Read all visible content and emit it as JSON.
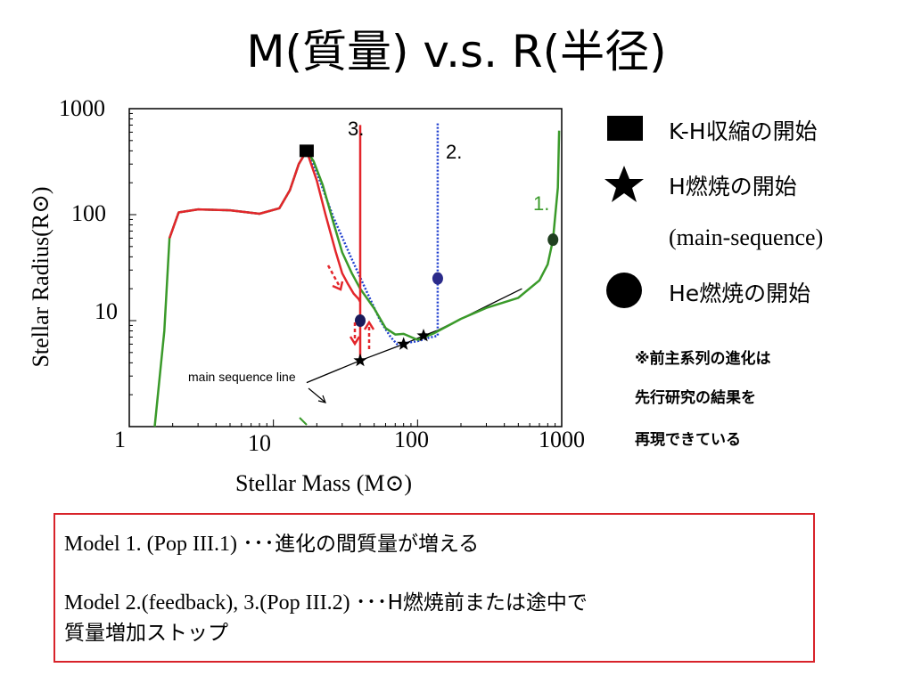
{
  "title": "M(質量) v.s. R(半径)",
  "chart_data": {
    "type": "line",
    "xlabel": "Stellar Mass (M⊙)",
    "ylabel": "Stellar Radius(R⊙)",
    "xscale": "log",
    "yscale": "log",
    "xlim": [
      1,
      1000
    ],
    "ylim": [
      1,
      1000
    ],
    "xticks": [
      "1",
      "10",
      "100",
      "1000"
    ],
    "yticks": [
      "1000",
      "100",
      "10"
    ],
    "grid": false,
    "series": [
      {
        "name": "1.",
        "color": "#3a9a2a",
        "x": [
          1.5,
          1.75,
          1.9,
          2.2,
          3,
          5,
          8,
          11,
          13,
          15,
          17,
          19,
          22,
          26,
          30,
          35,
          40,
          50,
          60,
          70,
          80,
          100,
          130,
          200,
          300,
          500,
          700,
          800,
          870,
          940,
          960
        ],
        "y": [
          1,
          8,
          60,
          105,
          112,
          110,
          102,
          115,
          170,
          300,
          400,
          320,
          190,
          85,
          44,
          28,
          20,
          13,
          8.5,
          7.4,
          7.5,
          6.6,
          7.6,
          10.4,
          13.2,
          16.4,
          24,
          34,
          58,
          180,
          620
        ]
      },
      {
        "name": "2.",
        "color": "#1f3fcf",
        "x": [
          1.9,
          2.2,
          3,
          5,
          8,
          11,
          13,
          15,
          17,
          20,
          26,
          35,
          45,
          55,
          65,
          72,
          80,
          100,
          120,
          138,
          138,
          138
        ],
        "y": [
          60,
          105,
          112,
          110,
          102,
          115,
          170,
          300,
          400,
          250,
          95,
          38,
          18,
          10,
          7,
          6,
          6.1,
          6.4,
          6.9,
          7.2,
          25,
          750
        ]
      },
      {
        "name": "3.",
        "color": "#e3262b",
        "x": [
          1.9,
          2.2,
          3,
          5,
          8,
          11,
          13,
          15,
          17,
          20,
          23,
          27,
          30,
          33,
          36,
          39,
          40,
          40,
          40
        ],
        "y": [
          60,
          105,
          112,
          110,
          102,
          115,
          170,
          300,
          400,
          210,
          100,
          45,
          28,
          22,
          18,
          16,
          15,
          4.3,
          700
        ]
      },
      {
        "name": "main sequence line",
        "color": "#000000",
        "x": [
          17,
          40,
          80,
          110,
          140,
          530
        ],
        "y": [
          2.6,
          4.2,
          6,
          7.2,
          8.2,
          20
        ]
      }
    ],
    "markers": {
      "kh_start": {
        "x": [
          17
        ],
        "y": [
          400
        ]
      },
      "h_burning_start": {
        "x": [
          40,
          80,
          110
        ],
        "y": [
          4.2,
          6,
          7.2
        ]
      },
      "he_burning_start": {
        "x": [
          40,
          138,
          870
        ],
        "y": [
          10,
          25,
          58
        ]
      }
    },
    "annotations": [
      "1.",
      "2.",
      "3.",
      "main sequence line"
    ]
  },
  "legend": {
    "kh_label": "K-H収縮の開始",
    "h_label": "H燃焼の開始",
    "h_sub": "(main-sequence)",
    "he_label": "He燃焼の開始",
    "colors": {
      "square": "#000000",
      "star": "#000000",
      "circle": "#000000"
    }
  },
  "note": {
    "line1": "※前主系列の進化は",
    "line2": "先行研究の結果を",
    "line3": "再現できている"
  },
  "summary": {
    "line1_model": "Model 1. (Pop III.1)",
    "line1_dots": "･･･",
    "line1_text": "進化の間質量が増える",
    "line2_model": "Model 2.(feedback), 3.(Pop III.2)",
    "line2_dots": "･･･",
    "line2_text": "H燃焼前または途中で",
    "line3_text": "質量増加ストップ",
    "border_color": "#d8232a"
  }
}
